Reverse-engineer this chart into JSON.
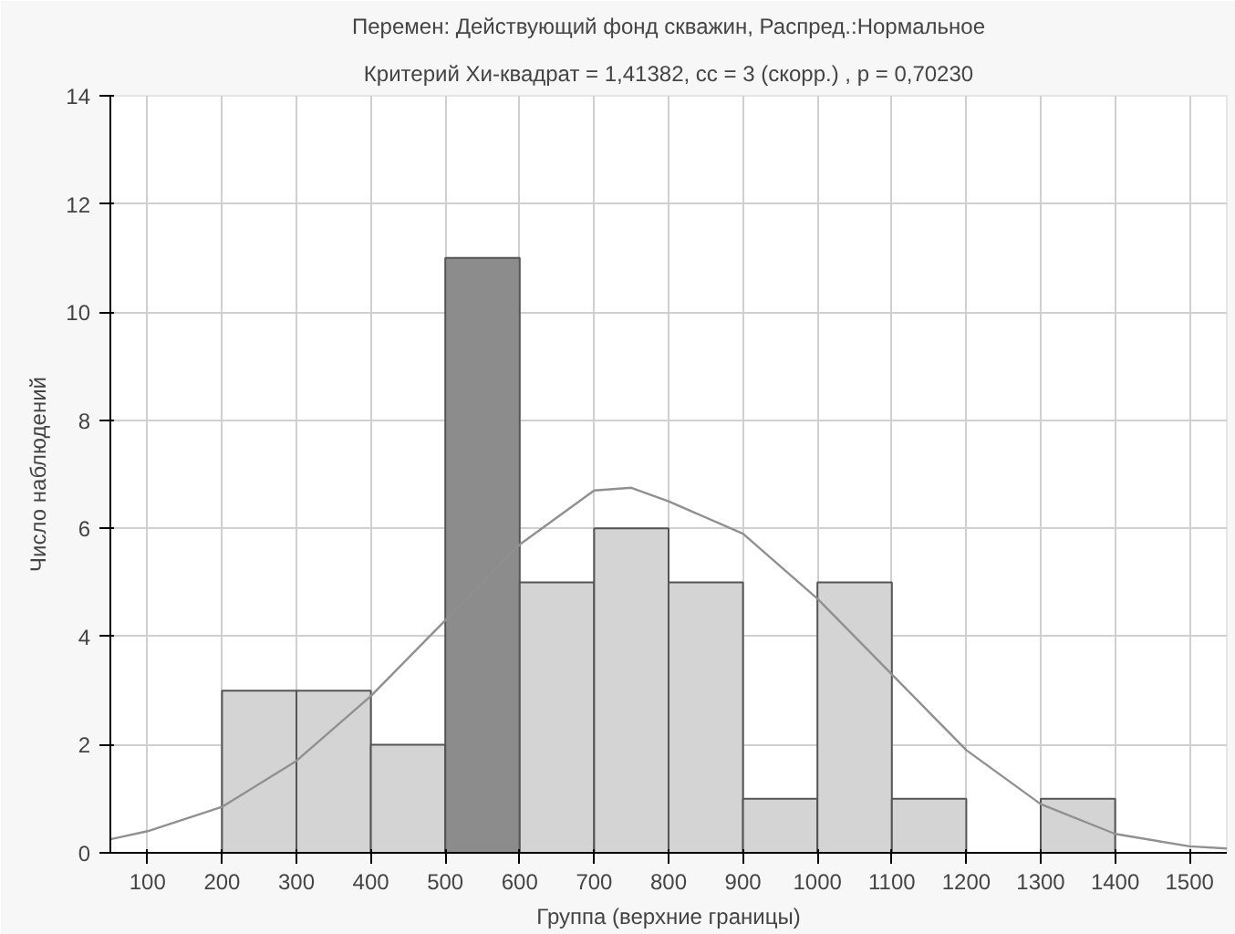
{
  "chart_data": {
    "type": "histogram",
    "title": "Перемен: Действующий фонд скважин, Распред.:Нормальное",
    "subtitle": "Критерий Хи-квадрат = 1,41382, cc = 3 (скорр.) , p = 0,70230",
    "xlabel": "Группа (верхние границы)",
    "ylabel": "Число наблюдений",
    "bins": [
      100,
      200,
      300,
      400,
      500,
      600,
      700,
      800,
      900,
      1000,
      1100,
      1200,
      1300,
      1400,
      1500
    ],
    "values": [
      0,
      3,
      3,
      2,
      11,
      5,
      6,
      5,
      1,
      5,
      1,
      0,
      1,
      0
    ],
    "colors": [
      "#d4d4d4",
      "#d4d4d4",
      "#d4d4d4",
      "#d4d4d4",
      "#8c8c8c",
      "#d4d4d4",
      "#d4d4d4",
      "#d4d4d4",
      "#d4d4d4",
      "#d4d4d4",
      "#d4d4d4",
      "#d4d4d4",
      "#d4d4d4",
      "#d4d4d4"
    ],
    "series": [
      {
        "type": "line",
        "color": "#909090",
        "x": [
          50,
          100,
          200,
          300,
          400,
          500,
          600,
          700,
          750,
          800,
          900,
          1000,
          1100,
          1200,
          1300,
          1400,
          1500,
          1550
        ],
        "values": [
          0.25,
          0.4,
          0.85,
          1.7,
          2.9,
          4.3,
          5.7,
          6.7,
          6.75,
          6.5,
          5.9,
          4.7,
          3.3,
          1.9,
          0.9,
          0.35,
          0.12,
          0.08
        ]
      }
    ],
    "xlim": [
      50,
      1550
    ],
    "ylim": [
      0,
      14
    ],
    "xticks": [
      100,
      200,
      300,
      400,
      500,
      600,
      700,
      800,
      900,
      1000,
      1100,
      1200,
      1300,
      1400,
      1500
    ],
    "yticks": [
      0,
      2,
      4,
      6,
      8,
      10,
      12,
      14
    ],
    "grid": true
  }
}
